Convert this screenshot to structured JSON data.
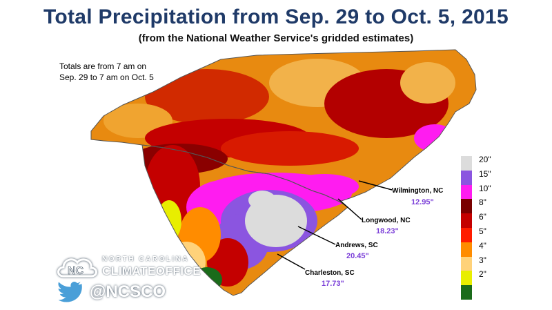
{
  "title": "Total Precipitation from Sep. 29 to Oct. 5, 2015",
  "subtitle": "(from the National Weather Service's gridded estimates)",
  "note": {
    "line1": "Totals are from 7 am on",
    "line2": "Sep. 29 to 7 am on Oct. 5"
  },
  "legend": [
    {
      "label": "20\"",
      "color": "#dcdcdc"
    },
    {
      "label": "15\"",
      "color": "#8b55e0"
    },
    {
      "label": "10\"",
      "color": "#ff1cf0"
    },
    {
      "label": "8\"",
      "color": "#7a0000"
    },
    {
      "label": "6\"",
      "color": "#c40000"
    },
    {
      "label": "5\"",
      "color": "#ff1c00"
    },
    {
      "label": "4\"",
      "color": "#ff8c00"
    },
    {
      "label": "3\"",
      "color": "#ffd27a"
    },
    {
      "label": "2\"",
      "color": "#e8ee00"
    },
    {
      "label": "",
      "color": "#1a6b1a"
    }
  ],
  "locations": [
    {
      "name": "Wilmington, NC",
      "value": "12.95\""
    },
    {
      "name": "Longwood, NC",
      "value": "18.23\""
    },
    {
      "name": "Andrews, SC",
      "value": "20.45\""
    },
    {
      "name": "Charleston, SC",
      "value": "17.73\""
    }
  ],
  "logo": {
    "line1": "NORTH CAROLINA",
    "line2": "CLIMATEOFFICE",
    "icon": "nc-cloud-icon"
  },
  "twitter": {
    "icon": "twitter-bird-icon",
    "handle": "@NCSCO"
  },
  "colors": {
    "title": "#1f3a68",
    "ocean": "#ffffff",
    "value_text": "#7b3fd8"
  }
}
